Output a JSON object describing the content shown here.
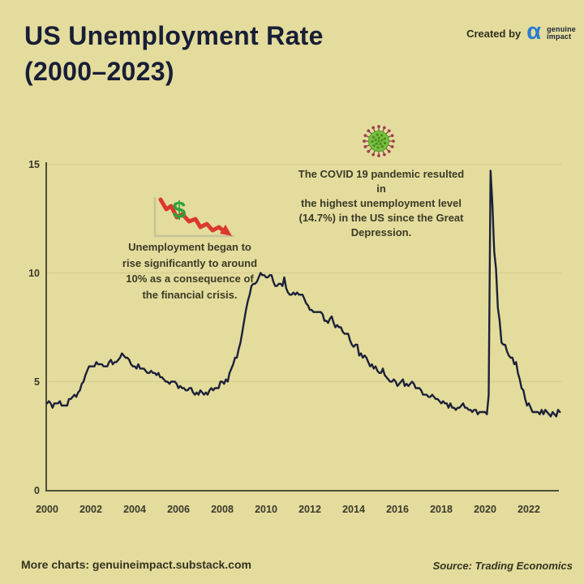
{
  "page": {
    "background_color": "#e4dc9d",
    "accent_navy": "#1b2139"
  },
  "header": {
    "title": "US Unemployment Rate\n(2000–2023)",
    "created_by_label": "Created by",
    "brand": {
      "logo_icon": "alpha-icon",
      "logo_glyph": "α",
      "logo_color": "#2a7bd2",
      "name_line1": "genuine",
      "name_line2": "impact"
    }
  },
  "annotations": {
    "financial_crisis": {
      "icon": "declining-chart-dollar-icon",
      "icon_colors": {
        "line": "#d93a2c",
        "dollar": "#2ba23c",
        "axis": "#c8c29b"
      },
      "text": "Unemployment began to\nrise significantly to around\n10% as a consequence of\nthe financial crisis."
    },
    "covid": {
      "icon": "virus-icon",
      "icon_colors": {
        "body": "#79c140",
        "dots": "#4f8d1f",
        "spikes": "#9c4152"
      },
      "text": "The COVID 19 pandemic resulted in\nthe highest unemployment level\n(14.7%) in the US since the Great\nDepression."
    }
  },
  "footer": {
    "more_charts": "More charts: genuineimpact.substack.com",
    "source": "Source: Trading Economics"
  },
  "chart_data": {
    "type": "line",
    "title": "US Unemployment Rate (2000–2023)",
    "series_name": "US unemployment rate (%)",
    "frequency": "monthly",
    "start_year": 2000,
    "xlim": [
      2000,
      2023.5
    ],
    "ylim": [
      0,
      15
    ],
    "y_ticks": [
      0,
      5,
      10,
      15
    ],
    "y_gridlines": [
      5,
      10,
      15
    ],
    "grid": "horizontal",
    "legend": "none",
    "line_color": "#1b2139",
    "axis_color": "#4f4e39",
    "grid_color": "#d5cd8f",
    "tick_label_color": "#3a392a",
    "x_tick_labels": [
      "2000",
      "2002",
      "2004",
      "2006",
      "2008",
      "2010",
      "2012",
      "2014",
      "2016",
      "2018",
      "2020",
      "2022"
    ],
    "values": [
      4.0,
      4.1,
      4.0,
      3.8,
      4.0,
      4.0,
      4.0,
      4.1,
      3.9,
      3.9,
      3.9,
      3.9,
      4.2,
      4.2,
      4.3,
      4.4,
      4.3,
      4.5,
      4.6,
      4.9,
      5.0,
      5.3,
      5.5,
      5.7,
      5.7,
      5.7,
      5.7,
      5.9,
      5.8,
      5.8,
      5.8,
      5.7,
      5.7,
      5.7,
      5.9,
      6.0,
      5.8,
      5.9,
      5.9,
      6.0,
      6.1,
      6.3,
      6.2,
      6.1,
      6.1,
      6.0,
      5.8,
      5.7,
      5.7,
      5.6,
      5.8,
      5.6,
      5.6,
      5.6,
      5.5,
      5.4,
      5.4,
      5.5,
      5.4,
      5.4,
      5.3,
      5.4,
      5.2,
      5.2,
      5.1,
      5.0,
      5.0,
      4.9,
      5.0,
      5.0,
      5.0,
      4.9,
      4.7,
      4.8,
      4.7,
      4.7,
      4.6,
      4.6,
      4.7,
      4.7,
      4.5,
      4.4,
      4.5,
      4.4,
      4.6,
      4.5,
      4.4,
      4.5,
      4.4,
      4.6,
      4.7,
      4.6,
      4.7,
      4.7,
      4.7,
      5.0,
      5.0,
      4.9,
      5.1,
      5.0,
      5.4,
      5.6,
      5.8,
      6.1,
      6.1,
      6.5,
      6.8,
      7.3,
      7.8,
      8.3,
      8.7,
      9.0,
      9.4,
      9.5,
      9.5,
      9.6,
      9.8,
      10.0,
      9.9,
      9.9,
      9.8,
      9.8,
      9.9,
      9.9,
      9.6,
      9.4,
      9.4,
      9.5,
      9.5,
      9.4,
      9.8,
      9.3,
      9.1,
      9.0,
      9.0,
      9.1,
      9.0,
      9.1,
      9.0,
      9.0,
      9.0,
      8.8,
      8.6,
      8.5,
      8.3,
      8.3,
      8.2,
      8.2,
      8.2,
      8.2,
      8.2,
      8.1,
      7.8,
      7.8,
      7.7,
      7.9,
      8.0,
      7.7,
      7.5,
      7.6,
      7.5,
      7.5,
      7.3,
      7.2,
      7.2,
      7.2,
      6.9,
      6.7,
      6.6,
      6.7,
      6.7,
      6.2,
      6.3,
      6.1,
      6.2,
      6.1,
      5.9,
      5.7,
      5.8,
      5.6,
      5.7,
      5.5,
      5.4,
      5.4,
      5.6,
      5.3,
      5.2,
      5.1,
      5.0,
      5.0,
      5.1,
      5.0,
      4.8,
      4.9,
      5.0,
      5.1,
      4.8,
      4.9,
      4.8,
      4.9,
      5.0,
      4.9,
      4.7,
      4.7,
      4.7,
      4.6,
      4.4,
      4.4,
      4.4,
      4.3,
      4.3,
      4.4,
      4.3,
      4.2,
      4.2,
      4.1,
      4.0,
      4.1,
      4.0,
      4.0,
      3.8,
      4.0,
      3.8,
      3.8,
      3.7,
      3.8,
      3.8,
      3.9,
      4.0,
      3.8,
      3.8,
      3.7,
      3.7,
      3.6,
      3.7,
      3.7,
      3.5,
      3.6,
      3.6,
      3.6,
      3.6,
      3.5,
      4.4,
      14.7,
      13.2,
      11.0,
      10.2,
      8.4,
      7.8,
      6.8,
      6.7,
      6.7,
      6.4,
      6.2,
      6.1,
      6.1,
      5.8,
      5.9,
      5.4,
      5.1,
      4.7,
      4.6,
      4.2,
      3.9,
      4.0,
      3.8,
      3.6,
      3.6,
      3.6,
      3.6,
      3.5,
      3.7,
      3.5,
      3.7,
      3.6,
      3.5,
      3.4,
      3.6,
      3.5,
      3.4,
      3.7,
      3.6
    ]
  }
}
